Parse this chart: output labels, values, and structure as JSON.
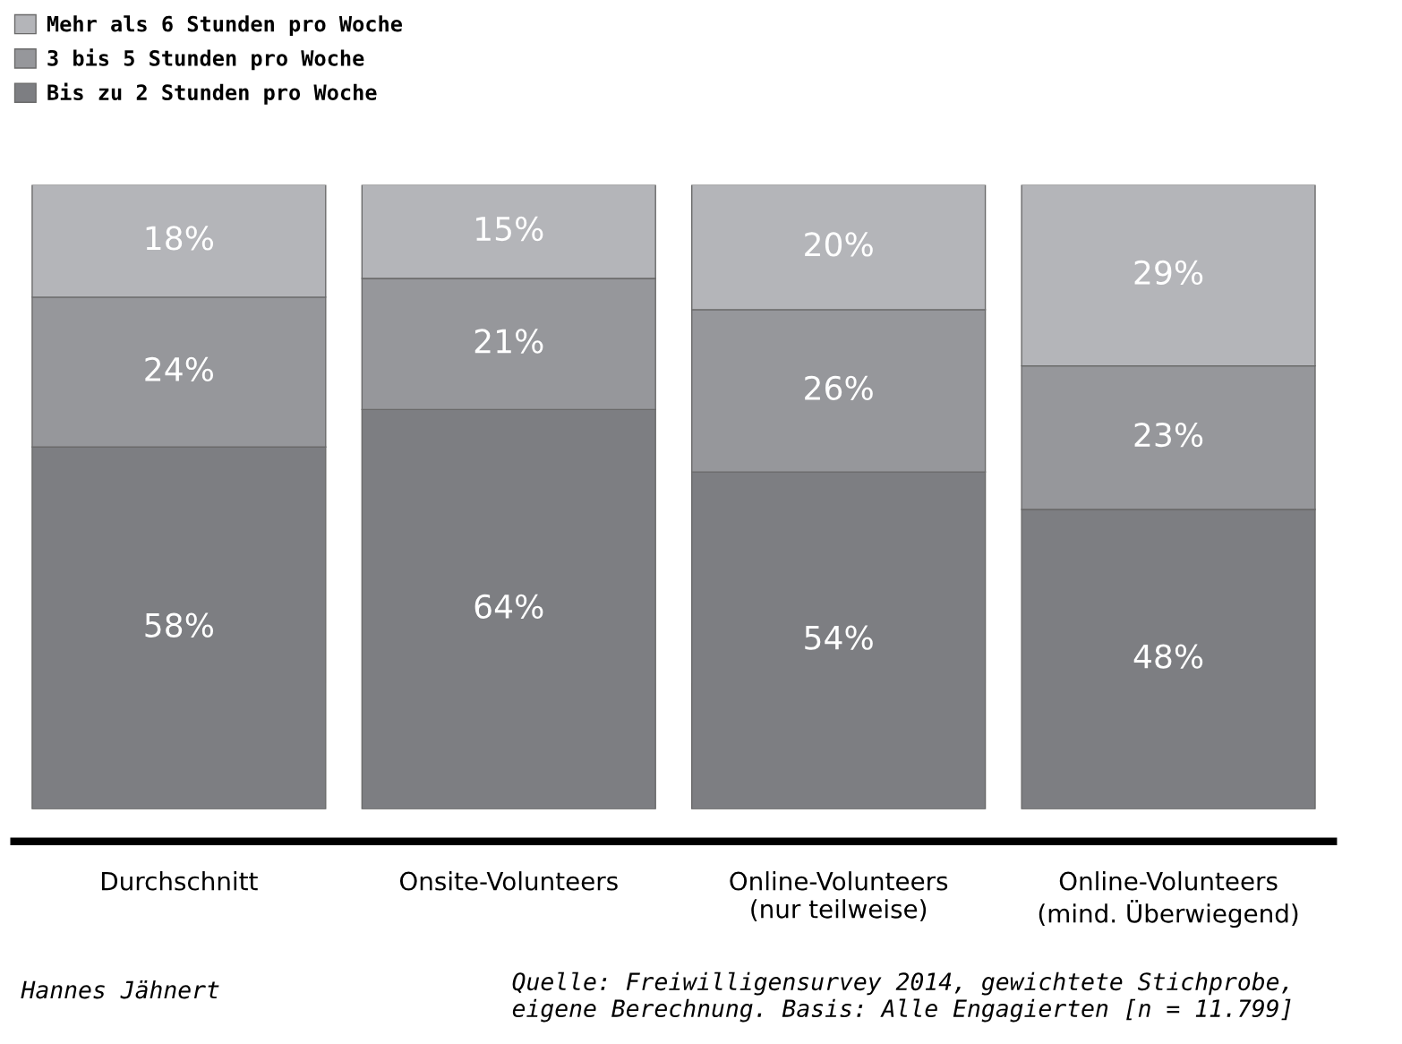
{
  "chart_data": {
    "type": "bar",
    "stacked": true,
    "legend": "top left",
    "grid": false,
    "tick_labels": "x",
    "categories": [
      "Durchschnitt",
      "Onsite-Volunteers",
      "Online-Volunteers\n(nur teilweise)",
      "Online-Volunteers\n(mind. Überwiegend)"
    ],
    "series": [
      {
        "name": "Bis zu 2 Stunden pro Woche",
        "color": "#7d7e82",
        "values": [
          58,
          64,
          54,
          48
        ],
        "value_labels": [
          "58%",
          "64%",
          "54%",
          "48%"
        ]
      },
      {
        "name": "3 bis 5 Stunden pro Woche",
        "color": "#96979b",
        "values": [
          24,
          21,
          26,
          23
        ],
        "value_labels": [
          "24%",
          "21%",
          "26%",
          "23%"
        ]
      },
      {
        "name": "Mehr als 6 Stunden pro Woche",
        "color": "#b4b5b9",
        "values": [
          18,
          15,
          20,
          29
        ],
        "value_labels": [
          "18%",
          "15%",
          "20%",
          "29%"
        ]
      }
    ],
    "annotations": [
      "Hannes Jähnert",
      "Quelle: Freiwilligensurvey 2014, gewichtete Stichprobe,\neigene Berechnung. Basis: Alle Engagierten [n = 11.799]"
    ]
  }
}
